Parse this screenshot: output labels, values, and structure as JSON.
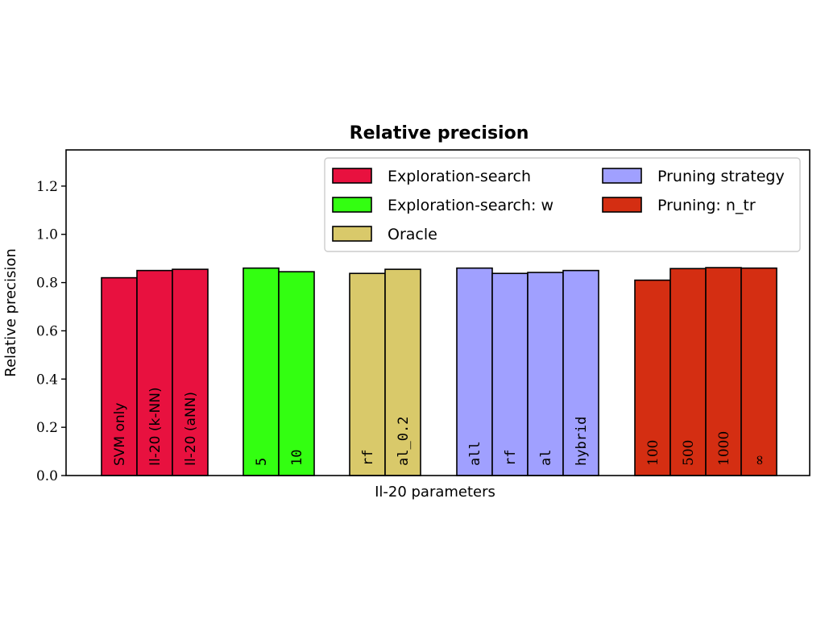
{
  "chart_data": {
    "type": "bar",
    "title": "Relative precision",
    "xlabel": "Il-20 parameters",
    "ylabel": "Relative precision",
    "ylim": [
      0,
      1.35
    ],
    "yticks": [
      "0.0",
      "0.2",
      "0.4",
      "0.6",
      "0.8",
      "1.0",
      "1.2"
    ],
    "grid": false,
    "legend_position": "top-right",
    "groups": [
      {
        "name": "Exploration-search",
        "legend_label": "Exploration-search",
        "color": "#e8113f",
        "label_font": "sans",
        "bars": [
          {
            "label": "SVM only",
            "value": 0.82
          },
          {
            "label": "Il-20 (k-NN)",
            "value": 0.85
          },
          {
            "label": "Il-20 (aNN)",
            "value": 0.855
          }
        ]
      },
      {
        "name": "Exploration-search: w",
        "legend_label": "Exploration-search: w",
        "color": "#33ff11",
        "label_font": "mono",
        "bars": [
          {
            "label": "5",
            "value": 0.86
          },
          {
            "label": "10",
            "value": 0.845
          }
        ]
      },
      {
        "name": "Oracle",
        "legend_label": "Oracle",
        "color": "#d9c96a",
        "label_font": "mono",
        "bars": [
          {
            "label": "rf",
            "value": 0.838
          },
          {
            "label": "al_0.2",
            "value": 0.855
          }
        ]
      },
      {
        "name": "Pruning strategy",
        "legend_label": "Pruning strategy",
        "color": "#a0a0ff",
        "label_font": "mono",
        "bars": [
          {
            "label": "all",
            "value": 0.86
          },
          {
            "label": "rf",
            "value": 0.838
          },
          {
            "label": "al",
            "value": 0.842
          },
          {
            "label": "hybrid",
            "value": 0.85
          }
        ]
      },
      {
        "name": "Pruning: n_tr",
        "legend_label": "Pruning: n_tr",
        "color": "#d42e12",
        "label_font": "serif",
        "bars": [
          {
            "label": "100",
            "value": 0.81
          },
          {
            "label": "500",
            "value": 0.858
          },
          {
            "label": "1000",
            "value": 0.862
          },
          {
            "label": "∞",
            "value": 0.86
          }
        ]
      }
    ]
  }
}
